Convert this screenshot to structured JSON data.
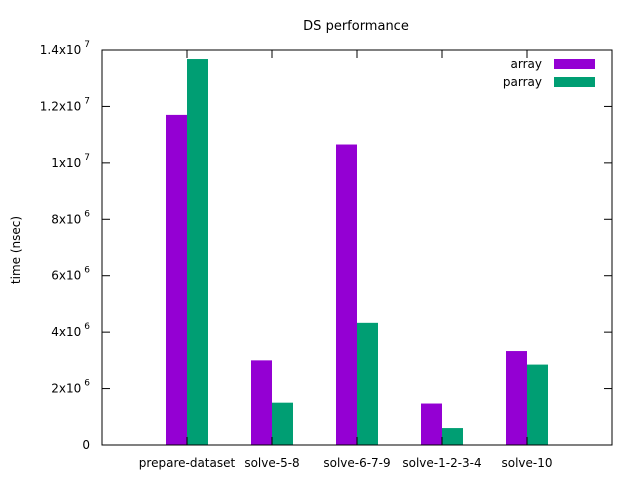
{
  "chart_data": {
    "type": "bar",
    "title": "DS performance",
    "xlabel": "",
    "ylabel": "time (nsec)",
    "ylim": [
      0,
      14000000
    ],
    "grid": false,
    "legend_position": "top-right",
    "categories": [
      "prepare-dataset",
      "solve-5-8",
      "solve-6-7-9",
      "solve-1-2-3-4",
      "solve-10"
    ],
    "yticks": [
      {
        "value": 0,
        "mantissa": "0",
        "exponent": ""
      },
      {
        "value": 2000000,
        "mantissa": "2x10",
        "exponent": "6"
      },
      {
        "value": 4000000,
        "mantissa": "4x10",
        "exponent": "6"
      },
      {
        "value": 6000000,
        "mantissa": "6x10",
        "exponent": "6"
      },
      {
        "value": 8000000,
        "mantissa": "8x10",
        "exponent": "6"
      },
      {
        "value": 10000000,
        "mantissa": "1x10",
        "exponent": "7"
      },
      {
        "value": 12000000,
        "mantissa": "1.2x10",
        "exponent": "7"
      },
      {
        "value": 14000000,
        "mantissa": "1.4x10",
        "exponent": "7"
      }
    ],
    "series": [
      {
        "name": "array",
        "color": "#9400d3",
        "values": [
          11700000,
          3000000,
          10650000,
          1470000,
          3330000
        ]
      },
      {
        "name": "parray",
        "color": "#009e73",
        "values": [
          13680000,
          1500000,
          4330000,
          600000,
          2850000
        ]
      }
    ]
  }
}
